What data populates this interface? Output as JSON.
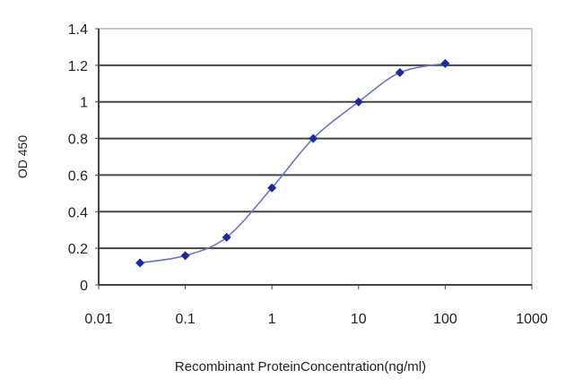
{
  "chart_data": {
    "type": "line",
    "title": "",
    "xlabel": "Recombinant ProteinConcentration(ng/ml)",
    "ylabel": "OD 450",
    "x_scale": "log",
    "xlim": [
      0.01,
      1000
    ],
    "ylim": [
      0,
      1.4
    ],
    "x_ticks": [
      "0.01",
      "0.1",
      "1",
      "10",
      "100",
      "1000"
    ],
    "y_ticks": [
      "0",
      "0.2",
      "0.4",
      "0.6",
      "0.8",
      "1",
      "1.2",
      "1.4"
    ],
    "grid": "horizontal",
    "legend": "none",
    "series": [
      {
        "color": "#1a2a9a",
        "marker": "diamond",
        "x": [
          0.03,
          0.1,
          0.3,
          1,
          3,
          10,
          30,
          100
        ],
        "y": [
          0.12,
          0.16,
          0.26,
          0.53,
          0.8,
          1.0,
          1.16,
          1.21
        ]
      }
    ]
  }
}
